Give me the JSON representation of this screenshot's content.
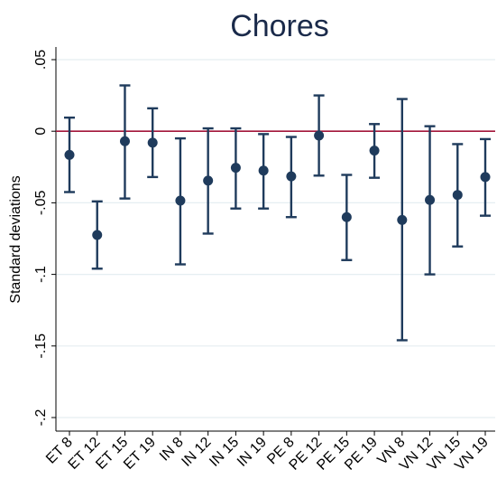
{
  "chart_data": {
    "type": "scatter",
    "subtype": "point-with-error-bars",
    "title": "Chores",
    "xlabel": "",
    "ylabel": "Standard deviations",
    "ylim": [
      -0.2,
      0.05
    ],
    "yticks": [
      0.05,
      0,
      -0.05,
      -0.1,
      -0.15,
      -0.2
    ],
    "ytick_labels": [
      ".05",
      "0",
      "-.05",
      "-.1",
      "-.15",
      "-.2"
    ],
    "grid": true,
    "reference_line": 0,
    "categories": [
      "ET 8",
      "ET 12",
      "ET 15",
      "ET 19",
      "IN 8",
      "IN 12",
      "IN 15",
      "IN 19",
      "PE 8",
      "PE 12",
      "PE 15",
      "PE 19",
      "VN 8",
      "VN 12",
      "VN 15",
      "VN 19"
    ],
    "points": [
      {
        "estimate": -0.0165,
        "lower": -0.0425,
        "upper": 0.0095
      },
      {
        "estimate": -0.0725,
        "lower": -0.096,
        "upper": -0.049
      },
      {
        "estimate": -0.007,
        "lower": -0.047,
        "upper": 0.032
      },
      {
        "estimate": -0.008,
        "lower": -0.032,
        "upper": 0.016
      },
      {
        "estimate": -0.0485,
        "lower": -0.093,
        "upper": -0.005
      },
      {
        "estimate": -0.0345,
        "lower": -0.0715,
        "upper": 0.002
      },
      {
        "estimate": -0.0255,
        "lower": -0.054,
        "upper": 0.002
      },
      {
        "estimate": -0.0275,
        "lower": -0.054,
        "upper": -0.002
      },
      {
        "estimate": -0.0315,
        "lower": -0.06,
        "upper": -0.004
      },
      {
        "estimate": -0.003,
        "lower": -0.031,
        "upper": 0.025
      },
      {
        "estimate": -0.06,
        "lower": -0.09,
        "upper": -0.0305
      },
      {
        "estimate": -0.0135,
        "lower": -0.0325,
        "upper": 0.005
      },
      {
        "estimate": -0.062,
        "lower": -0.146,
        "upper": 0.0225
      },
      {
        "estimate": -0.048,
        "lower": -0.1,
        "upper": 0.0035
      },
      {
        "estimate": -0.0445,
        "lower": -0.0805,
        "upper": -0.009
      },
      {
        "estimate": -0.032,
        "lower": -0.059,
        "upper": -0.0055
      }
    ],
    "colors": {
      "point": "#1f3b5c",
      "error_bar": "#1f3b5c",
      "reference_line": "#a3163a",
      "grid": "#e5eef1",
      "axis": "#000000",
      "title": "#1a2a4a"
    }
  }
}
